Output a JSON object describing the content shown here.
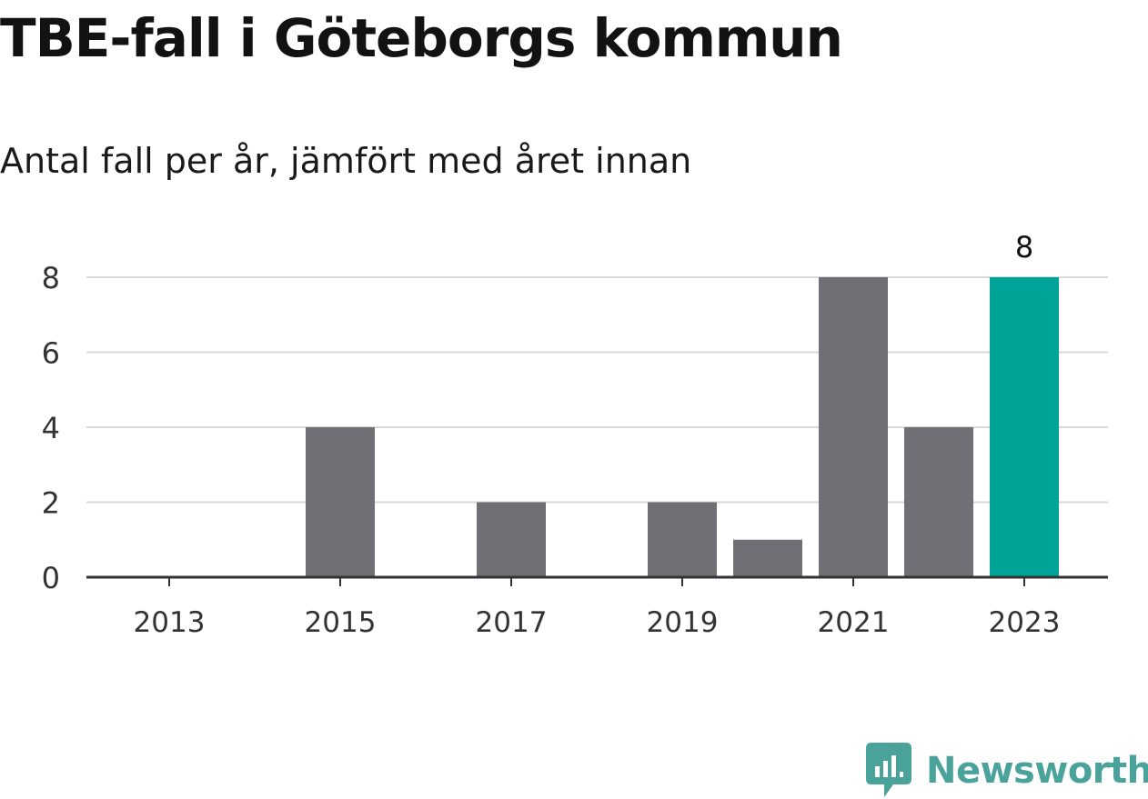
{
  "chart_data": {
    "type": "bar",
    "title": "TBE-fall i Göteborgs kommun",
    "subtitle": "Antal fall per år, jämfört med året innan",
    "categories": [
      "2013",
      "2014",
      "2015",
      "2016",
      "2017",
      "2018",
      "2019",
      "2020",
      "2021",
      "2022",
      "2023"
    ],
    "values": [
      0,
      0,
      4,
      0,
      2,
      0,
      2,
      1,
      8,
      4,
      8
    ],
    "x_tick_labels": [
      "2013",
      "2015",
      "2017",
      "2019",
      "2021",
      "2023"
    ],
    "y_ticks": [
      0,
      2,
      4,
      6,
      8
    ],
    "ylim": [
      0,
      8
    ],
    "grid": true,
    "highlight": {
      "category": "2023",
      "label": "8",
      "color": "#00a398"
    },
    "bar_color": "#6f6f75",
    "xlabel": "",
    "ylabel": ""
  },
  "brand": {
    "name": "Newsworthy",
    "icon": "newsworthy-logo-icon",
    "color": "#4aa39b"
  }
}
